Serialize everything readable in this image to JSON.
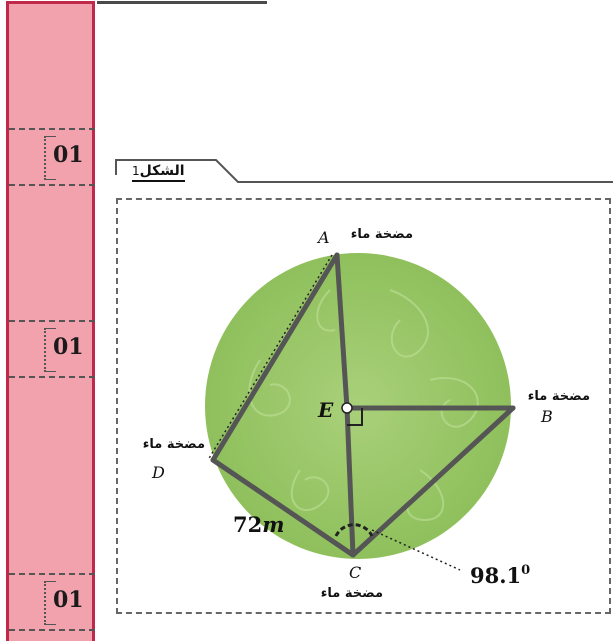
{
  "margin": {
    "scores": [
      "01",
      "01",
      "01"
    ]
  },
  "figure": {
    "tab_label": "الشكل",
    "tab_number": "1"
  },
  "points": {
    "A": "A",
    "B": "B",
    "C": "C",
    "D": "D",
    "E": "E"
  },
  "pump_label": "مضخة ماء",
  "measures": {
    "dc_length": "72",
    "dc_unit": "m",
    "angle_value": "98.1",
    "angle_unit": "0"
  },
  "colors": {
    "margin_fill": "#f1a2ad",
    "margin_border": "#c0294a",
    "circle_fill": "#9bc76a",
    "segment": "#555555"
  }
}
